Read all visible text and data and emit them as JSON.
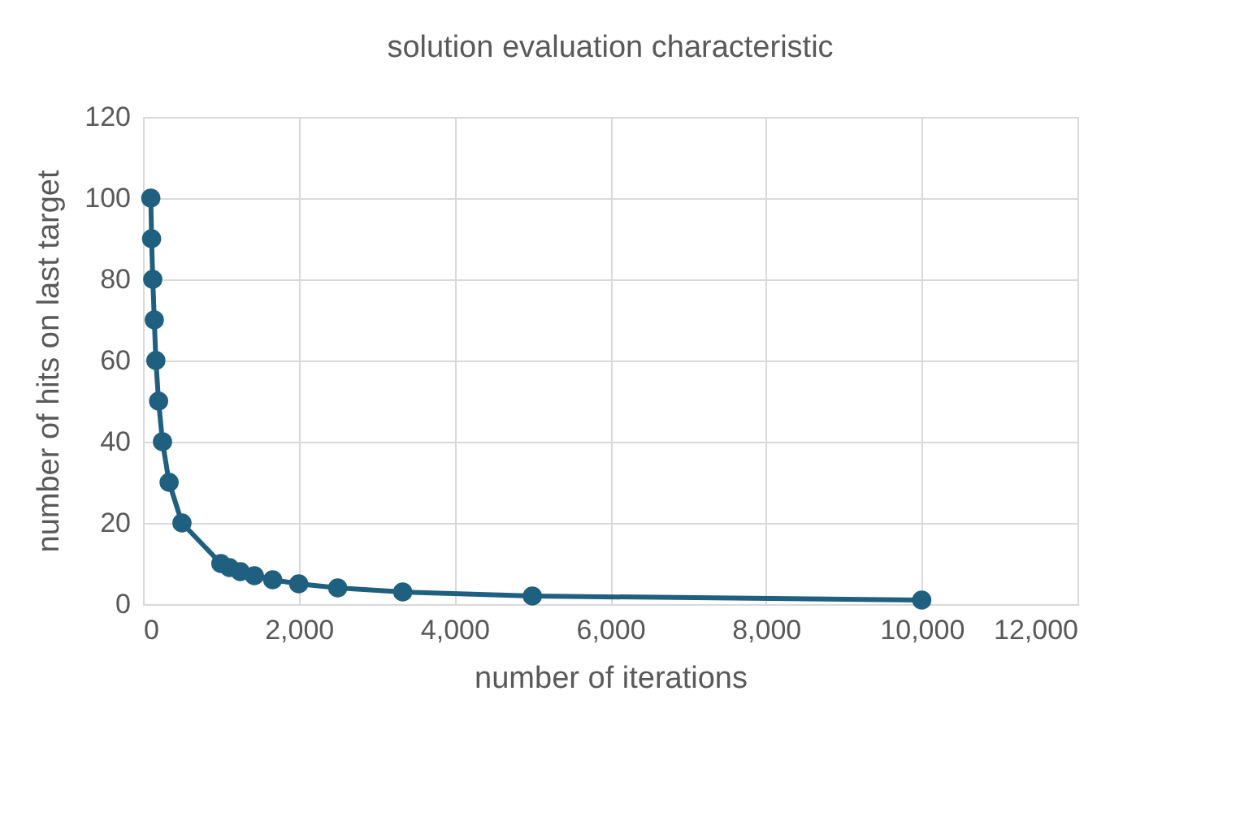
{
  "chart_data": {
    "type": "line",
    "title": "solution evaluation characteristic",
    "xlabel": "number of iterations",
    "ylabel": "number of hits on last target",
    "x": [
      100,
      110,
      125,
      145,
      165,
      200,
      250,
      335,
      500,
      1000,
      1110,
      1250,
      1430,
      1665,
      2000,
      2500,
      3335,
      5000,
      10000
    ],
    "series": [
      {
        "color": "#1f5f7f",
        "values": [
          100,
          90,
          80,
          70,
          60,
          50,
          40,
          30,
          20,
          10,
          9,
          8,
          7,
          6,
          5,
          4,
          3,
          2,
          1
        ]
      }
    ],
    "xlim": [
      0,
      12000
    ],
    "xticks": [
      0,
      {
        "value": 2000,
        "label": "2,000"
      },
      {
        "value": 4000,
        "label": "4,000"
      },
      {
        "value": 6000,
        "label": "6,000"
      },
      {
        "value": 8000,
        "label": "8,000"
      },
      {
        "value": 10000,
        "label": "10,000"
      },
      {
        "value": 12000,
        "label": "12,000"
      }
    ],
    "ylim": [
      0,
      120
    ],
    "yticks": [
      0,
      20,
      40,
      60,
      80,
      100,
      120
    ],
    "grid": true,
    "marker": "circle",
    "line_style": "solid",
    "legend": false
  }
}
